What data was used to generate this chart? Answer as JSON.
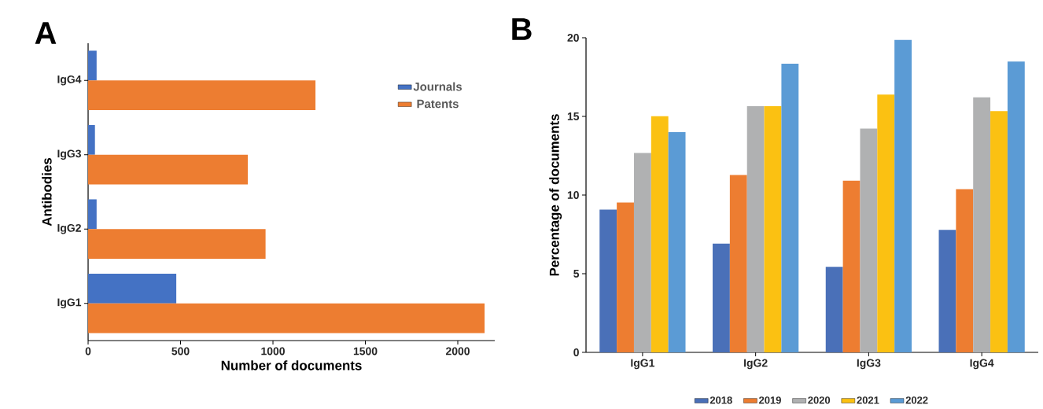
{
  "chart_data": [
    {
      "type": "bar",
      "orientation": "horizontal",
      "xlabel": "Number of documents",
      "ylabel": "Antibodies",
      "annotations": [
        "A"
      ],
      "categories": [
        "IgG4",
        "IgG3",
        "IgG2",
        "IgG1"
      ],
      "series": [
        {
          "name": "Journals",
          "color": "#4472c4",
          "values": [
            46,
            37,
            46,
            477
          ]
        },
        {
          "name": "Patents",
          "color": "#ed7d31",
          "values": [
            1230,
            864,
            960,
            2145
          ]
        }
      ],
      "xlim": [
        0,
        2200
      ],
      "xticks": [
        0,
        500,
        1000,
        1500,
        2000
      ],
      "legend": "top right",
      "grid": false
    },
    {
      "type": "bar",
      "ylabel": "Percentage of documents",
      "annotations": [
        "B"
      ],
      "categories": [
        "IgG1",
        "IgG2",
        "IgG3",
        "IgG4"
      ],
      "series": [
        {
          "name": "2018",
          "color": "#4a70b8",
          "values": [
            9.07,
            6.91,
            5.44,
            7.79
          ]
        },
        {
          "name": "2019",
          "color": "#ed7d31",
          "values": [
            9.53,
            11.28,
            10.91,
            10.37
          ]
        },
        {
          "name": "2020",
          "color": "#b0b1b2",
          "values": [
            12.68,
            15.65,
            14.23,
            16.21
          ]
        },
        {
          "name": "2021",
          "color": "#fbc112",
          "values": [
            15.01,
            15.65,
            16.39,
            15.34
          ]
        },
        {
          "name": "2022",
          "color": "#5b9bd5",
          "values": [
            14.0,
            18.35,
            19.86,
            18.49
          ]
        }
      ],
      "ylim": [
        0,
        20
      ],
      "yticks": [
        0,
        5,
        10,
        15,
        20
      ],
      "legend": "bottom",
      "grid": false
    }
  ]
}
